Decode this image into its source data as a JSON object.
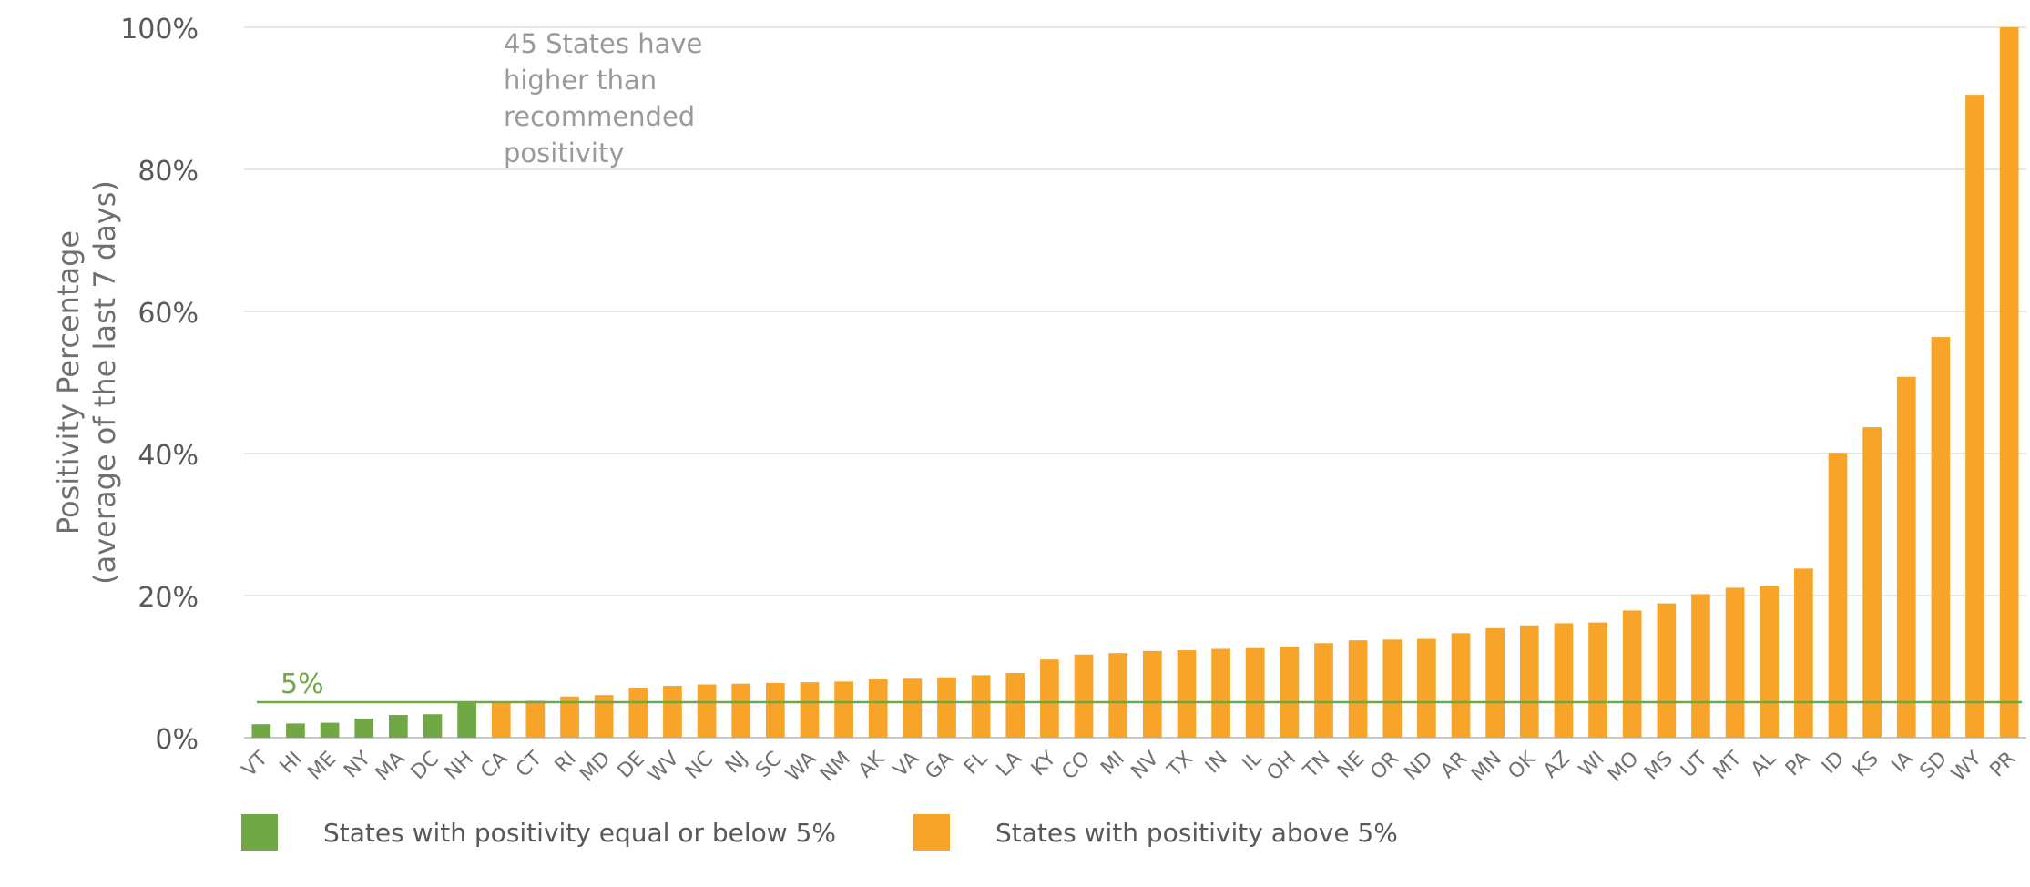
{
  "chart_data": {
    "type": "bar",
    "ylabel_lines": [
      "Positivity Percentage",
      "(average of the last 7 days)"
    ],
    "annotation_lines": [
      "45 States have",
      "higher than",
      "recommended",
      "positivity"
    ],
    "threshold": {
      "value": 5,
      "label": "5%",
      "color": "#70a845"
    },
    "ylim": [
      0,
      100
    ],
    "yticks": [
      0,
      20,
      40,
      60,
      80,
      100
    ],
    "ytick_labels": [
      "0%",
      "20%",
      "40%",
      "60%",
      "80%",
      "100%"
    ],
    "grid": true,
    "colors": {
      "below": "#70a845",
      "above": "#f7a428",
      "grid": "#e6e6e6",
      "axis": "#c8c8c8"
    },
    "categories": [
      "VT",
      "HI",
      "ME",
      "NY",
      "MA",
      "DC",
      "NH",
      "CA",
      "CT",
      "RI",
      "MD",
      "DE",
      "WV",
      "NC",
      "NJ",
      "SC",
      "WA",
      "NM",
      "AK",
      "VA",
      "GA",
      "FL",
      "LA",
      "KY",
      "CO",
      "MI",
      "NV",
      "TX",
      "IN",
      "IL",
      "OH",
      "TN",
      "NE",
      "OR",
      "ND",
      "AR",
      "MN",
      "OK",
      "AZ",
      "WI",
      "MO",
      "MS",
      "UT",
      "MT",
      "AL",
      "PA",
      "ID",
      "KS",
      "IA",
      "SD",
      "WY",
      "PR"
    ],
    "values": [
      1.9,
      2.0,
      2.1,
      2.7,
      3.2,
      3.3,
      5.0,
      5.1,
      5.2,
      5.8,
      6.0,
      7.0,
      7.3,
      7.5,
      7.6,
      7.7,
      7.8,
      7.9,
      8.2,
      8.3,
      8.5,
      8.8,
      9.1,
      11.0,
      11.7,
      11.9,
      12.2,
      12.3,
      12.5,
      12.6,
      12.8,
      13.3,
      13.7,
      13.8,
      13.9,
      14.7,
      15.4,
      15.8,
      16.1,
      16.2,
      17.9,
      18.9,
      20.2,
      21.1,
      21.3,
      23.8,
      40.1,
      43.7,
      50.8,
      56.4,
      90.5,
      100.0
    ],
    "legend": [
      {
        "label": "States with positivity equal or below 5%",
        "color": "#70a845"
      },
      {
        "label": "States with positivity above 5%",
        "color": "#f7a428"
      }
    ]
  }
}
